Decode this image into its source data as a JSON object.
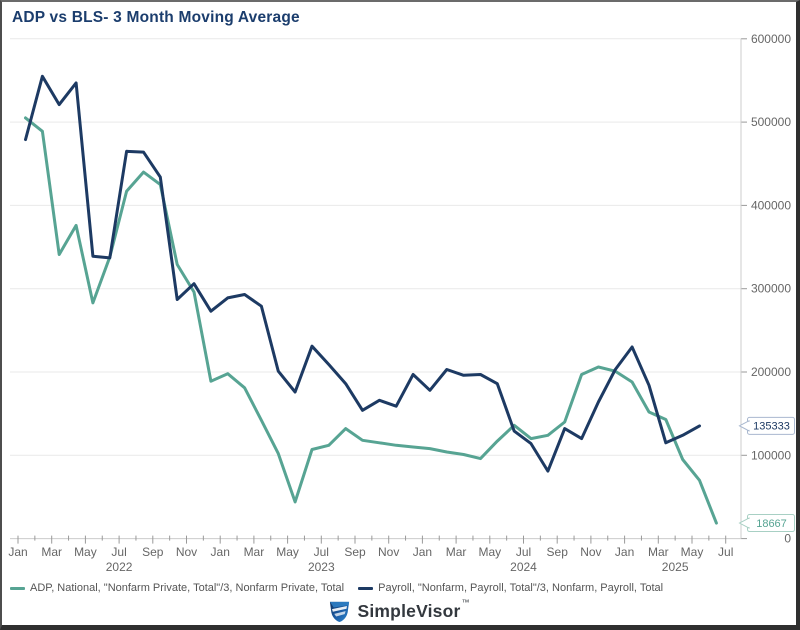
{
  "window": {
    "title": "ADP vs BLS- 3 Month Moving Average"
  },
  "colors": {
    "adp": "#57a493",
    "payroll": "#1d3a63",
    "title": "#1b3d6d",
    "grid": "#e9e9e9",
    "axis": "#cccccc",
    "tick": "#999999",
    "axis_label": "#666666",
    "callout_border_payroll": "#a9b8cf",
    "callout_border_adp": "#a8d0c4"
  },
  "chart_data": {
    "type": "line",
    "title": "ADP vs BLS- 3 Month Moving Average",
    "xlabel": "",
    "ylabel": "",
    "ylim": [
      0,
      600000
    ],
    "grid": true,
    "legend_position": "bottom",
    "y_ticks": [
      600000,
      500000,
      400000,
      300000,
      200000,
      100000,
      0
    ],
    "y_tick_labels": [
      "600000",
      "500000",
      "400000",
      "300000",
      "200000",
      "100000",
      "0"
    ],
    "categories": [
      "Jan 2022",
      "Feb 2022",
      "Mar 2022",
      "Apr 2022",
      "May 2022",
      "Jun 2022",
      "Jul 2022",
      "Aug 2022",
      "Sep 2022",
      "Oct 2022",
      "Nov 2022",
      "Dec 2022",
      "Jan 2023",
      "Feb 2023",
      "Mar 2023",
      "Apr 2023",
      "May 2023",
      "Jun 2023",
      "Jul 2023",
      "Aug 2023",
      "Sep 2023",
      "Oct 2023",
      "Nov 2023",
      "Dec 2023",
      "Jan 2024",
      "Feb 2024",
      "Mar 2024",
      "Apr 2024",
      "May 2024",
      "Jun 2024",
      "Jul 2024",
      "Aug 2024",
      "Sep 2024",
      "Oct 2024",
      "Nov 2024",
      "Dec 2024",
      "Jan 2025",
      "Feb 2025",
      "Mar 2025",
      "Apr 2025",
      "May 2025",
      "Jun 2025"
    ],
    "x_tick_labels": [
      "Jan",
      "Mar",
      "May",
      "Jul",
      "Sep",
      "Nov",
      "Jan",
      "Mar",
      "May",
      "Jul",
      "Sep",
      "Nov",
      "Jan",
      "Mar",
      "May",
      "Jul",
      "Sep",
      "Nov",
      "Jan",
      "Mar",
      "May",
      "Jul"
    ],
    "year_labels": [
      {
        "text": "2022",
        "month_index": 6
      },
      {
        "text": "2023",
        "month_index": 18
      },
      {
        "text": "2024",
        "month_index": 30
      },
      {
        "text": "2025",
        "month_index": 39
      }
    ],
    "series": [
      {
        "name": "ADP",
        "color": "#57a493",
        "end_label": "18667",
        "values": [
          505000,
          489000,
          341000,
          376000,
          283000,
          338000,
          417000,
          440000,
          425000,
          329000,
          296000,
          189000,
          198000,
          181000,
          142000,
          102000,
          44000,
          107000,
          112000,
          132000,
          118000,
          115000,
          112000,
          110000,
          108000,
          104000,
          101000,
          96000,
          117000,
          136000,
          120000,
          124000,
          140000,
          197000,
          206000,
          201000,
          188000,
          152000,
          143000,
          95000,
          70000,
          18667
        ]
      },
      {
        "name": "Payroll",
        "color": "#1d3a63",
        "end_label": "135333",
        "values": [
          479000,
          555000,
          521000,
          547000,
          339000,
          337000,
          465000,
          464000,
          434000,
          287000,
          306000,
          273000,
          289000,
          293000,
          279000,
          201000,
          176000,
          231000,
          209000,
          186000,
          154000,
          166000,
          159000,
          197000,
          178000,
          203000,
          196000,
          197000,
          186000,
          129000,
          114000,
          81000,
          132000,
          120000,
          164000,
          203000,
          230000,
          184000,
          115000,
          124000,
          135333
        ]
      }
    ]
  },
  "legend": [
    {
      "label": "ADP, National, \"Nonfarm Private, Total\"/3, Nonfarm Private, Total",
      "color": "#57a493"
    },
    {
      "label": "Payroll, \"Nonfarm, Payroll, Total\"/3, Nonfarm, Payroll, Total",
      "color": "#1d3a63"
    }
  ],
  "footer": {
    "brand": "SimpleVisor",
    "tm": "™"
  }
}
